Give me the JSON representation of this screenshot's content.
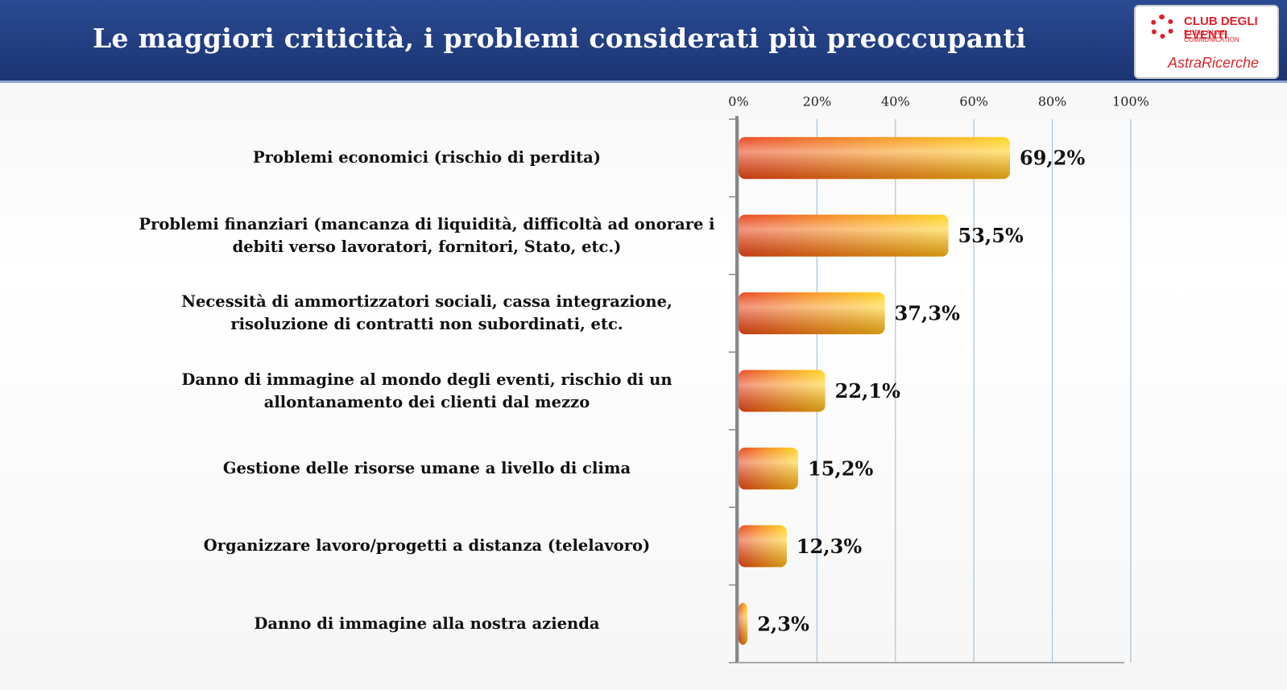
{
  "chart_data": {
    "type": "bar",
    "orientation": "horizontal",
    "title": "Le maggiori criticità, i problemi considerati più preoccupanti",
    "categories": [
      "Problemi economici (rischio di perdita)",
      "Problemi finanziari (mancanza di liquidità, difficoltà ad onorare i debiti verso lavoratori, fornitori, Stato, etc.)",
      "Necessità di ammortizzatori sociali, cassa integrazione, risoluzione di contratti non subordinati, etc.",
      "Danno di immagine al mondo degli eventi, rischio di un allontanamento dei clienti dal mezzo",
      "Gestione delle risorse umane a livello di clima",
      "Organizzare lavoro/progetti a distanza (telelavoro)",
      "Danno di immagine alla nostra azienda"
    ],
    "values": [
      69.2,
      53.5,
      37.3,
      22.1,
      15.2,
      12.3,
      2.3
    ],
    "value_labels": [
      "69,2%",
      "53,5%",
      "37,3%",
      "22,1%",
      "15,2%",
      "12,3%",
      "2,3%"
    ],
    "color": "#f07a10",
    "xlim": [
      0,
      100
    ],
    "xticks": [
      {
        "value": 0,
        "label": "0%"
      },
      {
        "value": 20,
        "label": "20%"
      },
      {
        "value": 40,
        "label": "40%"
      },
      {
        "value": 60,
        "label": "60%"
      },
      {
        "value": 80,
        "label": "80%"
      },
      {
        "value": 100,
        "label": "100%"
      }
    ],
    "grid": true
  },
  "logo": {
    "name": "CLUB DEGLI EVENTI",
    "tagline": "E DELLA LIVE COMMUNICATION",
    "partner": "AstraRicerche"
  }
}
